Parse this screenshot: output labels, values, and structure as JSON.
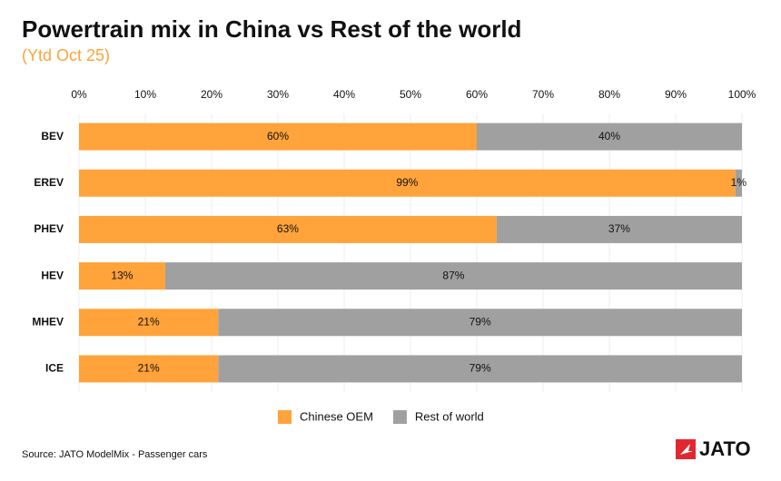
{
  "chart_data": {
    "type": "stacked_bar_horizontal",
    "title": "Powertrain mix in China vs Rest of the world",
    "subtitle": "(Ytd Oct 25)",
    "categories": [
      "BEV",
      "EREV",
      "PHEV",
      "HEV",
      "MHEV",
      "ICE"
    ],
    "series": [
      {
        "name": "Chinese OEM",
        "color": "#ffa33a",
        "values": [
          60,
          99,
          63,
          13,
          21,
          21
        ],
        "value_labels": [
          "60%",
          "99%",
          "63%",
          "13%",
          "21%",
          "21%"
        ]
      },
      {
        "name": "Rest of world",
        "color": "#a0a0a0",
        "values": [
          40,
          1,
          37,
          87,
          79,
          79
        ],
        "value_labels": [
          "40%",
          "1%",
          "37%",
          "87%",
          "79%",
          "79%"
        ]
      }
    ],
    "xlim": [
      0,
      100
    ],
    "xticks": [
      {
        "value": 0,
        "label": "0%"
      },
      {
        "value": 10,
        "label": "10%"
      },
      {
        "value": 20,
        "label": "20%"
      },
      {
        "value": 30,
        "label": "30%"
      },
      {
        "value": 40,
        "label": "40%"
      },
      {
        "value": 50,
        "label": "50%"
      },
      {
        "value": 60,
        "label": "60%"
      },
      {
        "value": 70,
        "label": "70%"
      },
      {
        "value": 80,
        "label": "80%"
      },
      {
        "value": 90,
        "label": "90%"
      },
      {
        "value": 100,
        "label": "100%"
      }
    ],
    "grid": true,
    "legend": "bottom",
    "source": "Source: JATO ModelMix - Passenger cars",
    "logo": "JATO"
  }
}
